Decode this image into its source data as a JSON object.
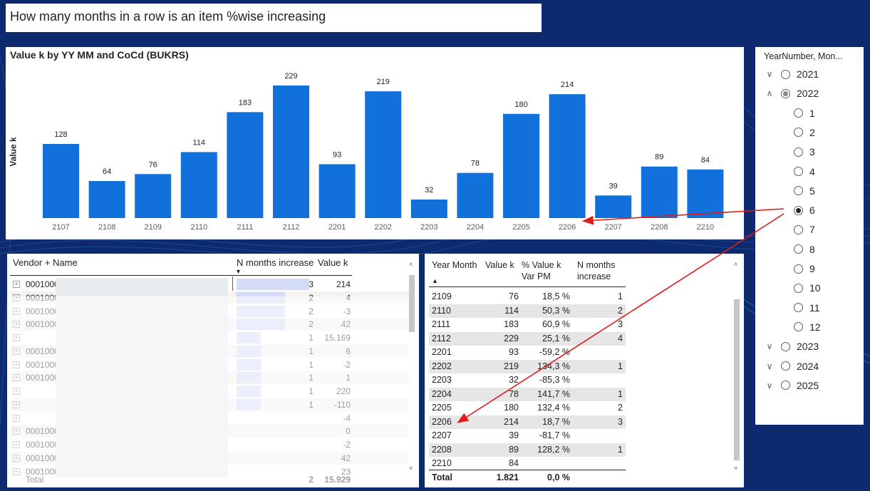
{
  "title": "How many months in a row is an item %wise increasing",
  "colors": {
    "accent": "#1170d9",
    "background": "#0d2a6e",
    "arrow": "#e01b1b",
    "nbar": "#d4dcf5"
  },
  "chart": {
    "title": "Value k by YY MM and CoCd (BUKRS)",
    "ylabel": "Value k"
  },
  "chart_data": {
    "type": "bar",
    "title": "Value k by YY MM and CoCd (BUKRS)",
    "xlabel": "",
    "ylabel": "Value k",
    "categories": [
      "2107",
      "2108",
      "2109",
      "2110",
      "2111",
      "2112",
      "2201",
      "2202",
      "2203",
      "2204",
      "2205",
      "2206",
      "2207",
      "2208",
      "2210"
    ],
    "values": [
      128,
      64,
      76,
      114,
      183,
      229,
      93,
      219,
      32,
      78,
      180,
      214,
      39,
      89,
      84
    ],
    "data_labels": [
      "128",
      "64",
      "76",
      "114",
      "183",
      "229",
      "93",
      "219",
      "32",
      "78",
      "180",
      "214",
      "39",
      "89",
      "84"
    ],
    "ylim": [
      0,
      229
    ],
    "grid": false,
    "legend": "none"
  },
  "slicer": {
    "title": "YearNumber, Mon...",
    "years": [
      {
        "label": "2021",
        "expanded": false,
        "state": "none"
      },
      {
        "label": "2022",
        "expanded": true,
        "state": "partial"
      },
      {
        "label": "2023",
        "expanded": false,
        "state": "none"
      },
      {
        "label": "2024",
        "expanded": false,
        "state": "none"
      },
      {
        "label": "2025",
        "expanded": false,
        "state": "none"
      }
    ],
    "months": [
      "1",
      "2",
      "3",
      "4",
      "5",
      "6",
      "7",
      "8",
      "9",
      "10",
      "11",
      "12"
    ],
    "selected_month": "6",
    "chevron_down": "∨",
    "chevron_up": "∧"
  },
  "vendor_table": {
    "headers": {
      "vendor": "Vendor + Name",
      "n_months": "N months increase",
      "value": "Value k"
    },
    "rows": [
      {
        "code": "0001000",
        "n": "3",
        "value": "214",
        "nfrac": 1.0
      },
      {
        "code": "0001000",
        "n": "2",
        "value": "4",
        "nfrac": 0.667
      },
      {
        "code": "0001000",
        "n": "2",
        "value": "-3",
        "nfrac": 0.667
      },
      {
        "code": "0001000",
        "n": "2",
        "value": "42",
        "nfrac": 0.667
      },
      {
        "code": "",
        "n": "1",
        "value": "15.169",
        "nfrac": 0.333
      },
      {
        "code": "0001000",
        "n": "1",
        "value": "6",
        "nfrac": 0.333
      },
      {
        "code": "0001000",
        "n": "1",
        "value": "-2",
        "nfrac": 0.333
      },
      {
        "code": "0001000",
        "n": "1",
        "value": "1",
        "nfrac": 0.333
      },
      {
        "code": "",
        "n": "1",
        "value": "220",
        "nfrac": 0.333
      },
      {
        "code": "",
        "n": "1",
        "value": "-110",
        "nfrac": 0.333
      },
      {
        "code": "",
        "n": "",
        "value": "-4",
        "nfrac": 0
      },
      {
        "code": "0001000",
        "n": "",
        "value": "0",
        "nfrac": 0
      },
      {
        "code": "0001000",
        "n": "",
        "value": "-2",
        "nfrac": 0
      },
      {
        "code": "0001000",
        "n": "",
        "value": "42",
        "nfrac": 0
      },
      {
        "code": "0001000",
        "n": "",
        "value": "23",
        "nfrac": 0
      }
    ],
    "total": {
      "label": "Total",
      "n": "2",
      "value": "15.929"
    },
    "sort_indicator": "▾",
    "expander_glyph": "+"
  },
  "month_table": {
    "headers": {
      "year_month": "Year Month",
      "value": "Value k",
      "pct_line1": "% Value k",
      "pct_line2": "Var PM",
      "n_line1": "N months",
      "n_line2": "increase"
    },
    "sort_indicator": "▲",
    "rows": [
      {
        "ym": "2109",
        "v": "76",
        "p": "18,5 %",
        "n": "1"
      },
      {
        "ym": "2110",
        "v": "114",
        "p": "50,3 %",
        "n": "2"
      },
      {
        "ym": "2111",
        "v": "183",
        "p": "60,9 %",
        "n": "3"
      },
      {
        "ym": "2112",
        "v": "229",
        "p": "25,1 %",
        "n": "4"
      },
      {
        "ym": "2201",
        "v": "93",
        "p": "-59,2 %",
        "n": ""
      },
      {
        "ym": "2202",
        "v": "219",
        "p": "134,3 %",
        "n": "1"
      },
      {
        "ym": "2203",
        "v": "32",
        "p": "-85,3 %",
        "n": ""
      },
      {
        "ym": "2204",
        "v": "78",
        "p": "141,7 %",
        "n": "1"
      },
      {
        "ym": "2205",
        "v": "180",
        "p": "132,4 %",
        "n": "2"
      },
      {
        "ym": "2206",
        "v": "214",
        "p": "18,7 %",
        "n": "3"
      },
      {
        "ym": "2207",
        "v": "39",
        "p": "-81,7 %",
        "n": ""
      },
      {
        "ym": "2208",
        "v": "89",
        "p": "128,2 %",
        "n": "1"
      },
      {
        "ym": "2210",
        "v": "84",
        "p": "",
        "n": ""
      }
    ],
    "total": {
      "label": "Total",
      "v": "1.821",
      "p": "0,0 %",
      "n": ""
    }
  },
  "scroll": {
    "up": "˄",
    "down": "˅"
  }
}
